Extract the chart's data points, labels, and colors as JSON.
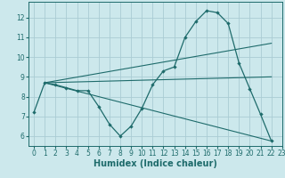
{
  "xlabel": "Humidex (Indice chaleur)",
  "bg_color": "#cce8ec",
  "grid_color": "#aaccd4",
  "line_color": "#1e6b6b",
  "curve_x": [
    0,
    1,
    2,
    3,
    4,
    5,
    6,
    7,
    8,
    9,
    10,
    11,
    12,
    13,
    14,
    15,
    16,
    17,
    18,
    19,
    20,
    21,
    22
  ],
  "curve_y": [
    7.2,
    8.7,
    8.6,
    8.45,
    8.3,
    8.3,
    7.5,
    6.6,
    6.0,
    6.5,
    7.4,
    8.6,
    9.3,
    9.5,
    11.0,
    11.8,
    12.35,
    12.25,
    11.7,
    9.7,
    8.4,
    7.1,
    5.75
  ],
  "line1_x": [
    1,
    22
  ],
  "line1_y": [
    8.7,
    5.75
  ],
  "line2_x": [
    1,
    22
  ],
  "line2_y": [
    8.7,
    10.7
  ],
  "line3_x": [
    1,
    22
  ],
  "line3_y": [
    8.7,
    9.0
  ],
  "xlim": [
    -0.5,
    23
  ],
  "ylim": [
    5.5,
    12.8
  ],
  "xticks": [
    0,
    1,
    2,
    3,
    4,
    5,
    6,
    7,
    8,
    9,
    10,
    11,
    12,
    13,
    14,
    15,
    16,
    17,
    18,
    19,
    20,
    21,
    22,
    23
  ],
  "yticks": [
    6,
    7,
    8,
    9,
    10,
    11,
    12
  ],
  "tick_fontsize": 5.5,
  "xlabel_fontsize": 7
}
